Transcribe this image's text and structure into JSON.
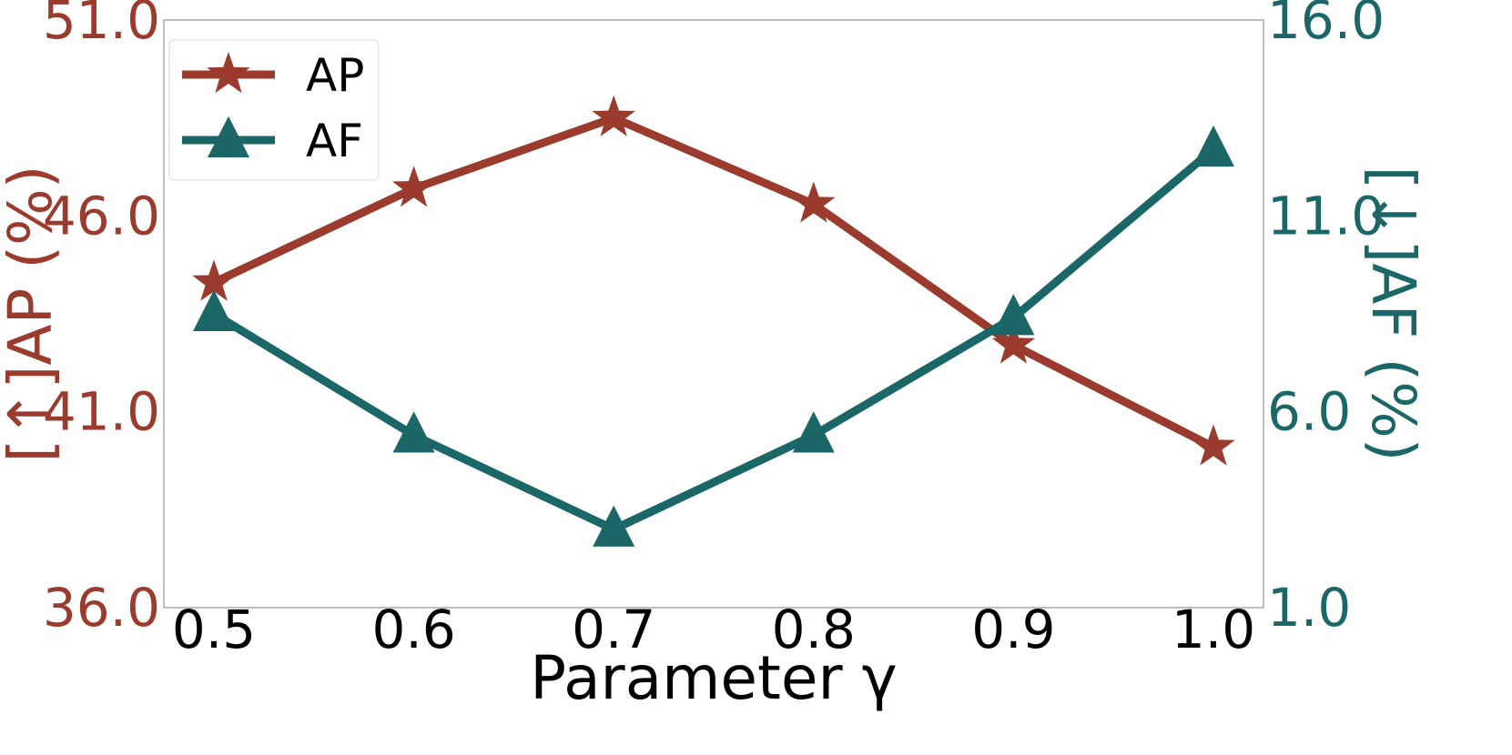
{
  "chart_data": {
    "type": "line",
    "x": [
      0.5,
      0.6,
      0.7,
      0.8,
      0.9,
      1.0
    ],
    "x_tick_labels": [
      "0.5",
      "0.6",
      "0.7",
      "0.8",
      "0.9",
      "1.0"
    ],
    "xlabel": "Parameter γ",
    "y_left": {
      "label": "[↑]AP (%)",
      "lim": [
        36.0,
        51.0
      ],
      "ticks": [
        36.0,
        41.0,
        46.0,
        51.0
      ],
      "tick_labels": [
        "36.0",
        "41.0",
        "46.0",
        "51.0"
      ],
      "color": "#9B3B2E"
    },
    "y_right": {
      "label": "[↓]AF (%)",
      "lim": [
        1.0,
        16.0
      ],
      "ticks": [
        1.0,
        6.0,
        11.0,
        16.0
      ],
      "tick_labels": [
        "1.0",
        "6.0",
        "11.0",
        "16.0"
      ],
      "color": "#1B6767"
    },
    "series": [
      {
        "name": "AP",
        "axis": "left",
        "marker": "star",
        "color": "#9B3B2E",
        "values": [
          44.3,
          46.7,
          48.5,
          46.3,
          42.7,
          40.1
        ]
      },
      {
        "name": "AF",
        "axis": "right",
        "marker": "triangle",
        "color": "#1B6767",
        "values": [
          8.5,
          5.4,
          3.0,
          5.4,
          8.4,
          12.7
        ]
      }
    ],
    "legend": {
      "position": "top-left"
    },
    "grid": false
  }
}
